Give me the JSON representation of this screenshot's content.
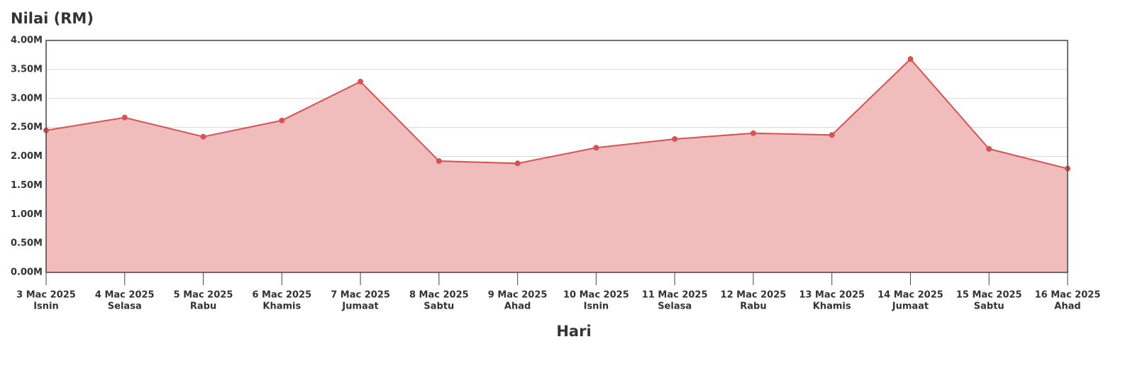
{
  "chart_data": {
    "type": "area",
    "title": "Nilai (RM)",
    "x_label": "Hari",
    "categories": [
      "3 Mac 2025",
      "4 Mac 2025",
      "5 Mac 2025",
      "6 Mac 2025",
      "7 Mac 2025",
      "8 Mac 2025",
      "9 Mac 2025",
      "10 Mac 2025",
      "11 Mac 2025",
      "12 Mac 2025",
      "13 Mac 2025",
      "14 Mac 2025",
      "15 Mac 2025",
      "16 Mac 2025"
    ],
    "category_days": [
      "Isnin",
      "Selasa",
      "Rabu",
      "Khamis",
      "Jumaat",
      "Sabtu",
      "Ahad",
      "Isnin",
      "Selasa",
      "Rabu",
      "Khamis",
      "Jumaat",
      "Sabtu",
      "Ahad"
    ],
    "values": [
      2.45,
      2.67,
      2.34,
      2.62,
      3.29,
      1.92,
      1.88,
      2.15,
      2.3,
      2.4,
      2.37,
      3.68,
      2.13,
      1.79
    ],
    "color": "#d65353",
    "fill_color": "#efb8b8",
    "ylim": [
      0,
      4
    ],
    "yticks": [
      {
        "value": 0,
        "label": "0.00M"
      },
      {
        "value": 0.5,
        "label": "0.50M"
      },
      {
        "value": 1,
        "label": "1.00M"
      },
      {
        "value": 1.5,
        "label": "1.50M"
      },
      {
        "value": 2,
        "label": "2.00M"
      },
      {
        "value": 2.5,
        "label": "2.50M"
      },
      {
        "value": 3,
        "label": "3.00M"
      },
      {
        "value": 3.5,
        "label": "3.50M"
      },
      {
        "value": 4,
        "label": "4.00M"
      }
    ],
    "grid": true
  }
}
